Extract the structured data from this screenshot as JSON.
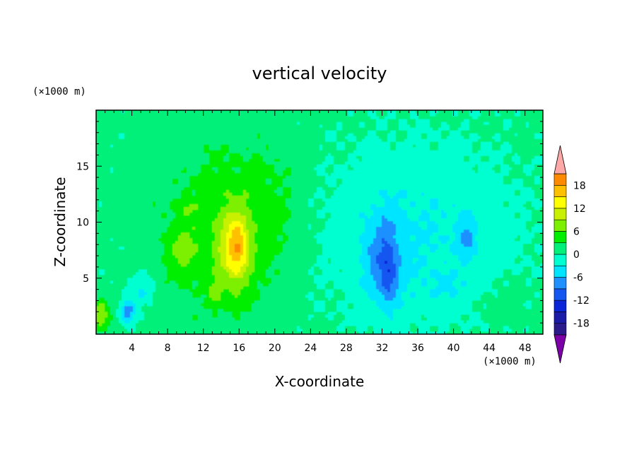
{
  "chart_data": {
    "type": "heatmap",
    "title": "vertical velocity",
    "xlabel": "X-coordinate",
    "ylabel": "Z-coordinate",
    "x_unit": "(×1000 m)",
    "z_unit": "(×1000 m)",
    "xlim": [
      0,
      50
    ],
    "ylim": [
      0,
      20
    ],
    "x_ticks": [
      4,
      8,
      12,
      16,
      20,
      24,
      28,
      32,
      36,
      40,
      44,
      48
    ],
    "y_ticks": [
      5,
      10,
      15
    ],
    "colorbar": {
      "tick_labels": [
        "18",
        "12",
        "6",
        "0",
        "-6",
        "-12",
        "-18"
      ],
      "tick_values": [
        18,
        12,
        6,
        0,
        -6,
        -12,
        -18
      ],
      "levels": [
        -21,
        -18,
        -15,
        -12,
        -9,
        -6,
        -3,
        0,
        3,
        6,
        9,
        12,
        15,
        18,
        21
      ],
      "colors": [
        "#7b00a6",
        "#2a1a8c",
        "#1b1ba8",
        "#0a24d8",
        "#1456f0",
        "#1e90ff",
        "#00e5ff",
        "#00ffd0",
        "#00f07a",
        "#00ee00",
        "#7cf000",
        "#c8f000",
        "#ffff00",
        "#ffc000",
        "#ff8a00",
        "#ff4a00",
        "#ff1800",
        "#ffa8a8"
      ],
      "extend": "both"
    },
    "features": [
      {
        "kind": "updraft",
        "x": 15.8,
        "z": 7.5,
        "peak": 14
      },
      {
        "kind": "updraft",
        "x": 9.5,
        "z": 7.5,
        "peak": 8
      },
      {
        "kind": "updraft",
        "x": 13.5,
        "z": 3.5,
        "peak": 9
      },
      {
        "kind": "updraft",
        "x": 0.6,
        "z": 1.8,
        "peak": 8
      },
      {
        "kind": "downdraft",
        "x": 32.5,
        "z": 6.0,
        "peak": -12
      },
      {
        "kind": "downdraft",
        "x": 41.5,
        "z": 8.5,
        "peak": -8
      },
      {
        "kind": "downdraft",
        "x": 3.5,
        "z": 2.0,
        "peak": -7
      }
    ]
  }
}
